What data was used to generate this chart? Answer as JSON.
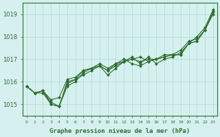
{
  "title": "Graphe pression niveau de la mer (hPa)",
  "xlabel_ticks": [
    0,
    1,
    2,
    3,
    4,
    5,
    6,
    7,
    8,
    9,
    10,
    11,
    12,
    13,
    14,
    15,
    16,
    17,
    18,
    19,
    20,
    21,
    22,
    23
  ],
  "ylim": [
    1014.5,
    1019.5
  ],
  "xlim": [
    -0.5,
    23.5
  ],
  "yticks": [
    1015,
    1016,
    1017,
    1018,
    1019
  ],
  "background_color": "#d6f0f0",
  "grid_color": "#aaddcc",
  "line_color": "#2d6e2d",
  "marker_color": "#2d6e2d",
  "series": [
    [
      1015.8,
      1015.5,
      1015.5,
      1015.0,
      1014.9,
      1015.8,
      1016.0,
      1016.4,
      1016.6,
      1016.7,
      1016.5,
      1016.8,
      1016.9,
      1017.0,
      1017.1,
      1016.9,
      1017.0,
      1017.1,
      1017.2,
      1017.2,
      1017.7,
      1017.8,
      1018.3,
      1019.1
    ],
    [
      1015.8,
      1015.5,
      1015.6,
      1015.0,
      1014.9,
      1015.9,
      1016.1,
      1016.3,
      1016.5,
      1016.7,
      1016.3,
      1016.6,
      1016.9,
      1017.1,
      1016.8,
      1017.1,
      1016.8,
      1017.0,
      1017.1,
      1017.3,
      1017.7,
      1018.0,
      1018.4,
      1019.2
    ],
    [
      1015.8,
      1015.5,
      1015.6,
      1015.2,
      1015.3,
      1016.1,
      1016.2,
      1016.5,
      1016.6,
      1016.8,
      1016.6,
      1016.8,
      1017.0,
      1016.8,
      1016.7,
      1016.9,
      1017.0,
      1017.2,
      1017.2,
      1017.4,
      1017.8,
      1017.9,
      1018.3,
      1019.0
    ],
    [
      1015.8,
      1015.5,
      1015.6,
      1015.1,
      1014.9,
      1016.0,
      1016.1,
      1016.5,
      1016.6,
      1016.7,
      1016.5,
      1016.7,
      1016.9,
      1017.0,
      1016.9,
      1017.0,
      1017.0,
      1017.1,
      1017.2,
      1017.2,
      1017.7,
      1017.8,
      1018.3,
      1019.1
    ]
  ],
  "title_color": "#2d6e2d",
  "tick_color": "#2d6e2d",
  "axis_color": "#2d6e2d"
}
